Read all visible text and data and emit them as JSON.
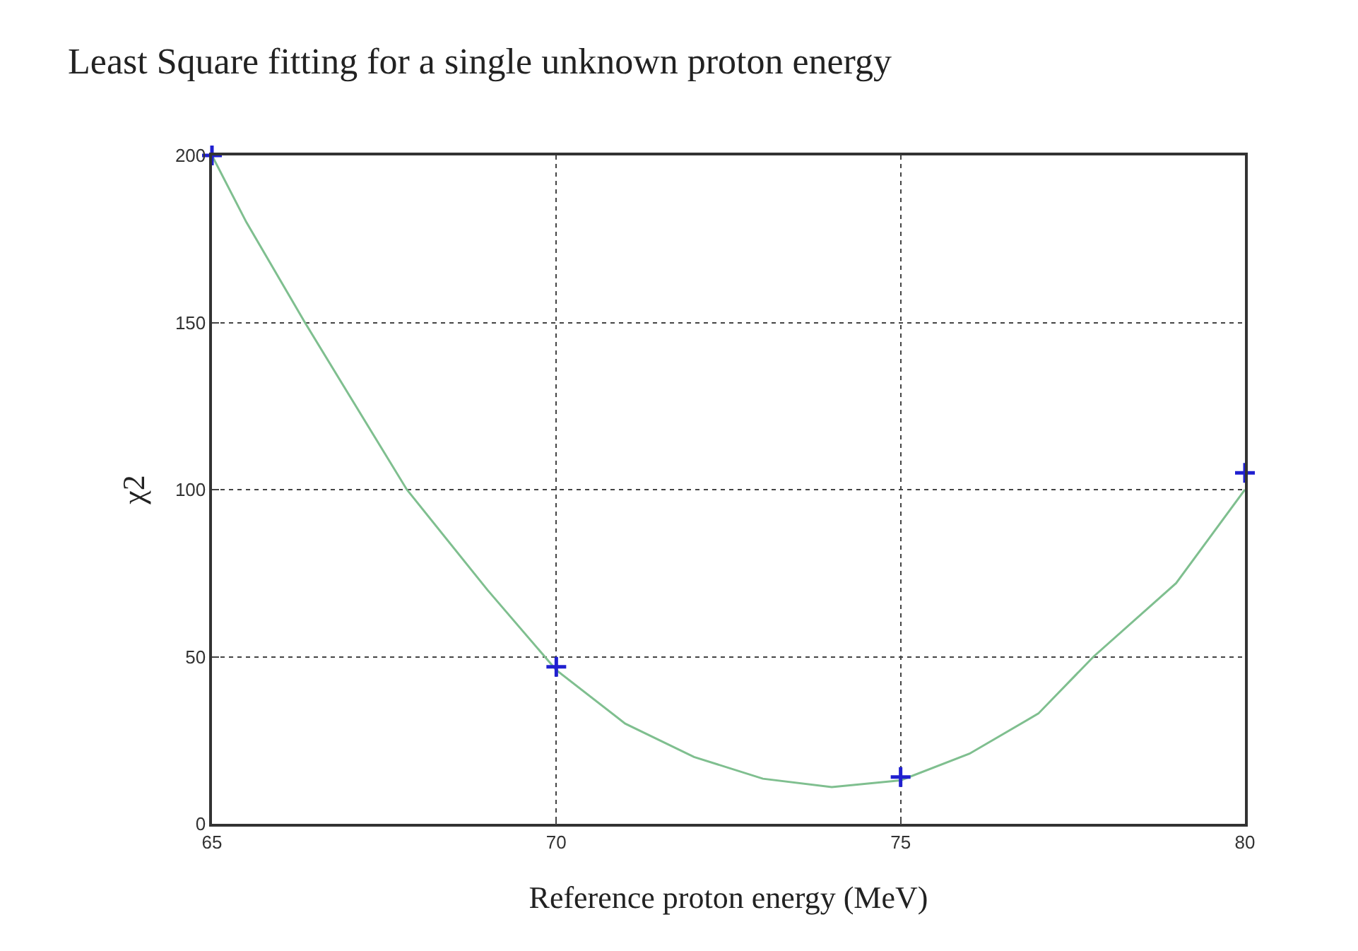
{
  "chart_data": {
    "type": "scatter",
    "title": "Least Square fitting for a single unknown proton energy",
    "xlabel": "Reference proton energy (MeV)",
    "ylabel": "χ2",
    "xlim": [
      65,
      80
    ],
    "xticks": [
      65,
      70,
      75,
      80
    ],
    "ylim": [
      0,
      200
    ],
    "yticks": [
      0,
      50,
      100,
      150,
      200
    ],
    "grid": true,
    "series": [
      {
        "type": "line",
        "color": "#7fbf8f",
        "marker": "none",
        "x": [
          65,
          65.5,
          66.35,
          67,
          67.83,
          69,
          70,
          71,
          72,
          73,
          74,
          75,
          76,
          77,
          77.8,
          79,
          80
        ],
        "values": [
          200,
          180,
          150,
          128,
          100,
          70,
          46,
          30,
          20,
          13.5,
          11,
          13,
          21,
          33,
          50,
          72,
          100
        ]
      },
      {
        "color": "#2020d0",
        "marker": "cross",
        "x": [
          65,
          70,
          75,
          80
        ],
        "values": [
          200,
          47,
          14,
          105
        ]
      }
    ]
  }
}
